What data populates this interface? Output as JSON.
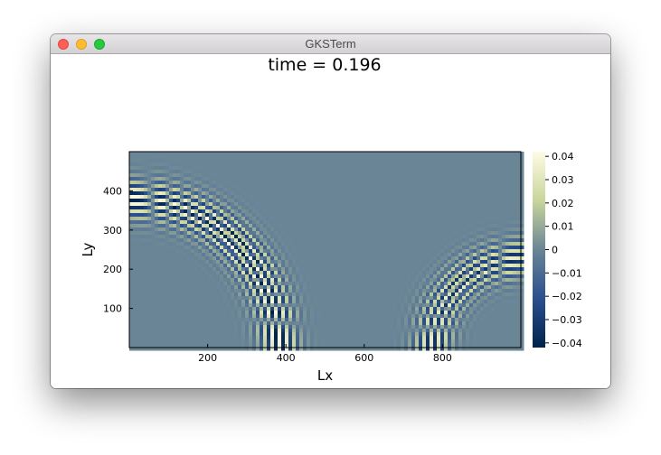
{
  "window": {
    "title": "GKSTerm"
  },
  "plot": {
    "title": "time = 0.196",
    "xlabel": "Lx",
    "ylabel": "Ly"
  },
  "colors": {
    "colormap": [
      "#00234a",
      "#2b4f8f",
      "#6a8596",
      "#c8d59a",
      "#fffbe6"
    ]
  },
  "chart_data": {
    "type": "heatmap",
    "title": "time = 0.196",
    "xlabel": "Lx",
    "ylabel": "Ly",
    "xlim": [
      0,
      1000
    ],
    "ylim": [
      0,
      500
    ],
    "xticks": [
      200,
      400,
      600,
      800
    ],
    "yticks": [
      100,
      200,
      300,
      400
    ],
    "colorbar": {
      "range": [
        -0.042,
        0.042
      ],
      "ticks": [
        0.04,
        0.03,
        0.02,
        0.01,
        0,
        -0.01,
        -0.02,
        -0.03,
        -0.04
      ],
      "tick_labels": [
        "0.04",
        "0.03",
        "0.02",
        "0.01",
        "0",
        "−0.01",
        "−0.02",
        "−0.03",
        "−0.04"
      ]
    },
    "wavefronts": [
      {
        "cx": 0,
        "cy": 0,
        "radius": 380,
        "amplitude": 0.042
      },
      {
        "cx": 1000,
        "cy": 0,
        "radius": 225,
        "amplitude": 0.035
      }
    ]
  }
}
